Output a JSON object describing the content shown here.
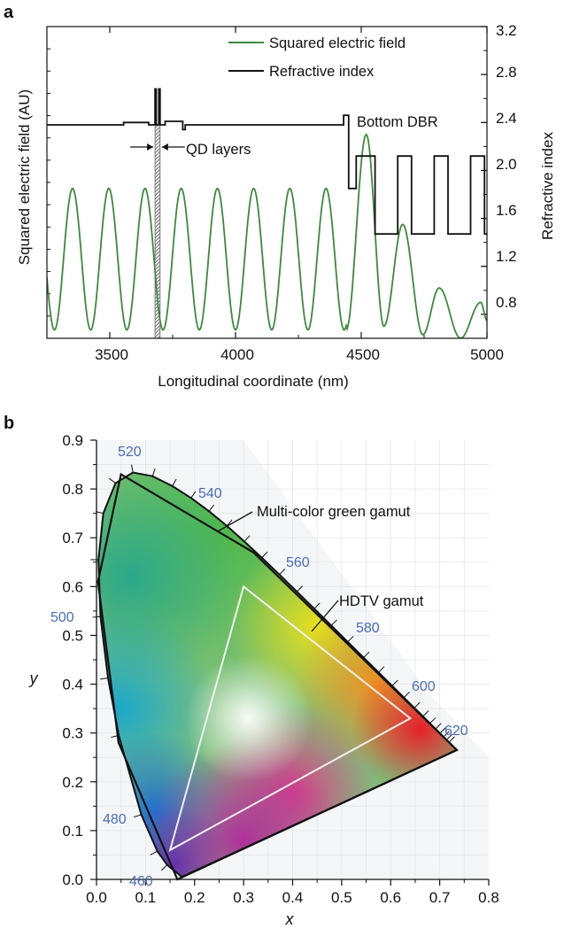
{
  "panel_a": {
    "label": "a",
    "xlabel": "Longitudinal coordinate (nm)",
    "ylabel_left": "Squared electric field (AU)",
    "ylabel_right": "Refractive index",
    "xticks": [
      "3500",
      "4000",
      "4500",
      "5000"
    ],
    "yticks_right": [
      "0.8",
      "1.2",
      "1.6",
      "2.0",
      "2.4",
      "2.8",
      "3.2"
    ],
    "legend": [
      "Squared electric field",
      "Refractive index"
    ],
    "annotations": {
      "qd": "QD layers",
      "dbr": "Bottom DBR"
    },
    "colors": {
      "field": "#3d8a3d",
      "index": "#111111"
    }
  },
  "panel_b": {
    "label": "b",
    "xlabel": "x",
    "ylabel": "y",
    "xticks": [
      "0.0",
      "0.1",
      "0.2",
      "0.3",
      "0.4",
      "0.5",
      "0.6",
      "0.7",
      "0.8"
    ],
    "yticks": [
      "0.0",
      "0.1",
      "0.2",
      "0.3",
      "0.4",
      "0.5",
      "0.6",
      "0.7",
      "0.8",
      "0.9"
    ],
    "wavelength_labels": [
      "460",
      "480",
      "500",
      "520",
      "540",
      "560",
      "580",
      "600",
      "620"
    ],
    "annotations": {
      "multicolor": "Multi-color green gamut",
      "hdtv": "HDTV gamut"
    }
  },
  "chart_data": [
    {
      "type": "line",
      "xlabel": "Longitudinal coordinate (nm)",
      "ylabel": "Squared electric field (AU)",
      "ylabel_right": "Refractive index",
      "xlim": [
        3250,
        5000
      ],
      "ylim_right": [
        0.6,
        3.2
      ],
      "legend_position": "top-right",
      "series": [
        {
          "name": "Squared electric field",
          "description_values": {
            "cavity_period_nm": 144,
            "cavity_peak_index_scale": 1.85,
            "cavity_trough_index_scale": 0.67,
            "dbr_peaks": [
              [
                4520,
                2.3
              ],
              [
                4665,
                1.55
              ],
              [
                4810,
                1.02
              ],
              [
                4975,
                0.9
              ]
            ]
          }
        },
        {
          "name": "Refractive index",
          "segments": [
            [
              3250,
              2.38
            ],
            [
              3555,
              2.38
            ],
            [
              3555,
              2.4
            ],
            [
              3655,
              2.4
            ],
            [
              3655,
              2.38
            ],
            [
              3680,
              2.38
            ],
            [
              3680,
              2.68
            ],
            [
              3685,
              2.68
            ],
            [
              3685,
              2.38
            ],
            [
              3695,
              2.38
            ],
            [
              3695,
              2.68
            ],
            [
              3700,
              2.68
            ],
            [
              3700,
              2.38
            ],
            [
              3720,
              2.38
            ],
            [
              3720,
              2.41
            ],
            [
              3790,
              2.41
            ],
            [
              3790,
              2.34
            ],
            [
              3800,
              2.34
            ],
            [
              3800,
              2.38
            ],
            [
              4430,
              2.38
            ],
            [
              4430,
              2.46
            ],
            [
              4450,
              2.46
            ],
            [
              4450,
              1.85
            ],
            [
              4480,
              1.85
            ],
            [
              4480,
              2.12
            ],
            [
              4555,
              2.12
            ],
            [
              4555,
              1.47
            ],
            [
              4645,
              1.47
            ],
            [
              4645,
              2.12
            ],
            [
              4700,
              2.12
            ],
            [
              4700,
              1.47
            ],
            [
              4790,
              1.47
            ],
            [
              4790,
              2.12
            ],
            [
              4845,
              2.12
            ],
            [
              4845,
              1.47
            ],
            [
              4935,
              1.47
            ],
            [
              4935,
              2.12
            ],
            [
              4990,
              2.12
            ],
            [
              4990,
              1.47
            ],
            [
              5000,
              1.47
            ]
          ]
        }
      ],
      "annotations": [
        "QD layers",
        "Bottom DBR"
      ]
    },
    {
      "type": "scatter",
      "title": "",
      "xlabel": "x",
      "ylabel": "y",
      "xlim": [
        0.0,
        0.8
      ],
      "ylim": [
        0.0,
        0.9
      ],
      "spectral_locus": [
        [
          0.1741,
          0.005
        ],
        [
          0.144,
          0.0297
        ],
        [
          0.124,
          0.0578
        ],
        [
          0.0913,
          0.1327
        ],
        [
          0.0454,
          0.295
        ],
        [
          0.0235,
          0.4127
        ],
        [
          0.0082,
          0.5384
        ],
        [
          0.0039,
          0.6548
        ],
        [
          0.0139,
          0.7502
        ],
        [
          0.0389,
          0.812
        ],
        [
          0.0743,
          0.8338
        ],
        [
          0.1142,
          0.8262
        ],
        [
          0.1547,
          0.8059
        ],
        [
          0.1929,
          0.7816
        ],
        [
          0.2296,
          0.7543
        ],
        [
          0.2658,
          0.7243
        ],
        [
          0.3016,
          0.6923
        ],
        [
          0.3373,
          0.6589
        ],
        [
          0.3731,
          0.6245
        ],
        [
          0.4087,
          0.5896
        ],
        [
          0.4441,
          0.5547
        ],
        [
          0.4788,
          0.5202
        ],
        [
          0.5125,
          0.4866
        ],
        [
          0.5448,
          0.4544
        ],
        [
          0.5752,
          0.4242
        ],
        [
          0.6029,
          0.3965
        ],
        [
          0.627,
          0.3725
        ],
        [
          0.6482,
          0.3514
        ],
        [
          0.6658,
          0.334
        ],
        [
          0.6801,
          0.3197
        ],
        [
          0.6915,
          0.3083
        ],
        [
          0.7006,
          0.2993
        ],
        [
          0.7079,
          0.292
        ],
        [
          0.714,
          0.2859
        ],
        [
          0.719,
          0.2809
        ],
        [
          0.7347,
          0.2653
        ]
      ],
      "series": [
        {
          "name": "HDTV gamut",
          "points": [
            [
              0.64,
              0.33
            ],
            [
              0.3,
              0.6
            ],
            [
              0.15,
              0.06
            ]
          ]
        },
        {
          "name": "Multi-color green gamut",
          "points": [
            [
              0.735,
              0.265
            ],
            [
              0.32,
              0.67
            ],
            [
              0.05,
              0.83
            ],
            [
              0.003,
              0.61
            ],
            [
              0.045,
              0.28
            ],
            [
              0.165,
              0.0
            ]
          ]
        }
      ],
      "wavelength_labels": [
        {
          "nm": "460",
          "x": 0.144,
          "y": 0.03
        },
        {
          "nm": "480",
          "x": 0.0913,
          "y": 0.133
        },
        {
          "nm": "500",
          "x": 0.0082,
          "y": 0.538
        },
        {
          "nm": "520",
          "x": 0.0743,
          "y": 0.834
        },
        {
          "nm": "540",
          "x": 0.2296,
          "y": 0.754
        },
        {
          "nm": "560",
          "x": 0.3731,
          "y": 0.625
        },
        {
          "nm": "580",
          "x": 0.5125,
          "y": 0.487
        },
        {
          "nm": "600",
          "x": 0.627,
          "y": 0.373
        },
        {
          "nm": "620",
          "x": 0.6915,
          "y": 0.308
        }
      ],
      "annotations": [
        "Multi-color green gamut",
        "HDTV gamut"
      ]
    }
  ]
}
